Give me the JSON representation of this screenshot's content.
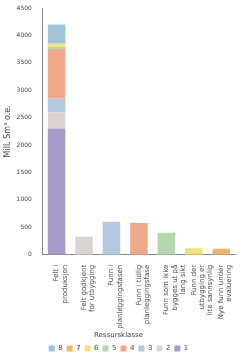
{
  "chart_data": {
    "type": "bar",
    "stacked": true,
    "y_label": "Mill. Sm³ o.e.",
    "legend_title": "Ressursklasse",
    "legend": "bottom",
    "grid": false,
    "categories": [
      "Felt i produksjon",
      "Felt godkjent for utbygging",
      "Funn i planleggingsfasen",
      "Funn i tidlig planleggingsfase",
      "Funn som ikke bygges ut på lang sikt",
      "Funn der utbygging er lite sannsynlig",
      "Nye funn under evaluering"
    ],
    "series": [
      {
        "name": "1",
        "color": "#a99bc9",
        "values": [
          2300,
          0,
          0,
          0,
          0,
          0,
          0
        ]
      },
      {
        "name": "2",
        "color": "#dcd3d3",
        "values": [
          300,
          330,
          0,
          0,
          0,
          0,
          0
        ]
      },
      {
        "name": "3",
        "color": "#b3c9de",
        "values": [
          250,
          0,
          600,
          0,
          0,
          0,
          0
        ]
      },
      {
        "name": "4",
        "color": "#f0a88a",
        "values": [
          900,
          0,
          0,
          580,
          0,
          0,
          0
        ]
      },
      {
        "name": "5",
        "color": "#b5d6b0",
        "values": [
          40,
          0,
          0,
          0,
          400,
          0,
          0
        ]
      },
      {
        "name": "6",
        "color": "#f2e27a",
        "values": [
          60,
          0,
          0,
          0,
          0,
          120,
          0
        ]
      },
      {
        "name": "7",
        "color": "#f5b26b",
        "values": [
          0,
          0,
          0,
          0,
          0,
          0,
          110
        ]
      },
      {
        "name": "8",
        "color": "#9fc3da",
        "values": [
          350,
          0,
          0,
          0,
          0,
          0,
          0
        ]
      }
    ],
    "ylim": [
      0,
      4500
    ],
    "yticks": [
      0,
      500,
      1000,
      1500,
      2000,
      2500,
      3000,
      3500,
      4000,
      4500
    ]
  }
}
